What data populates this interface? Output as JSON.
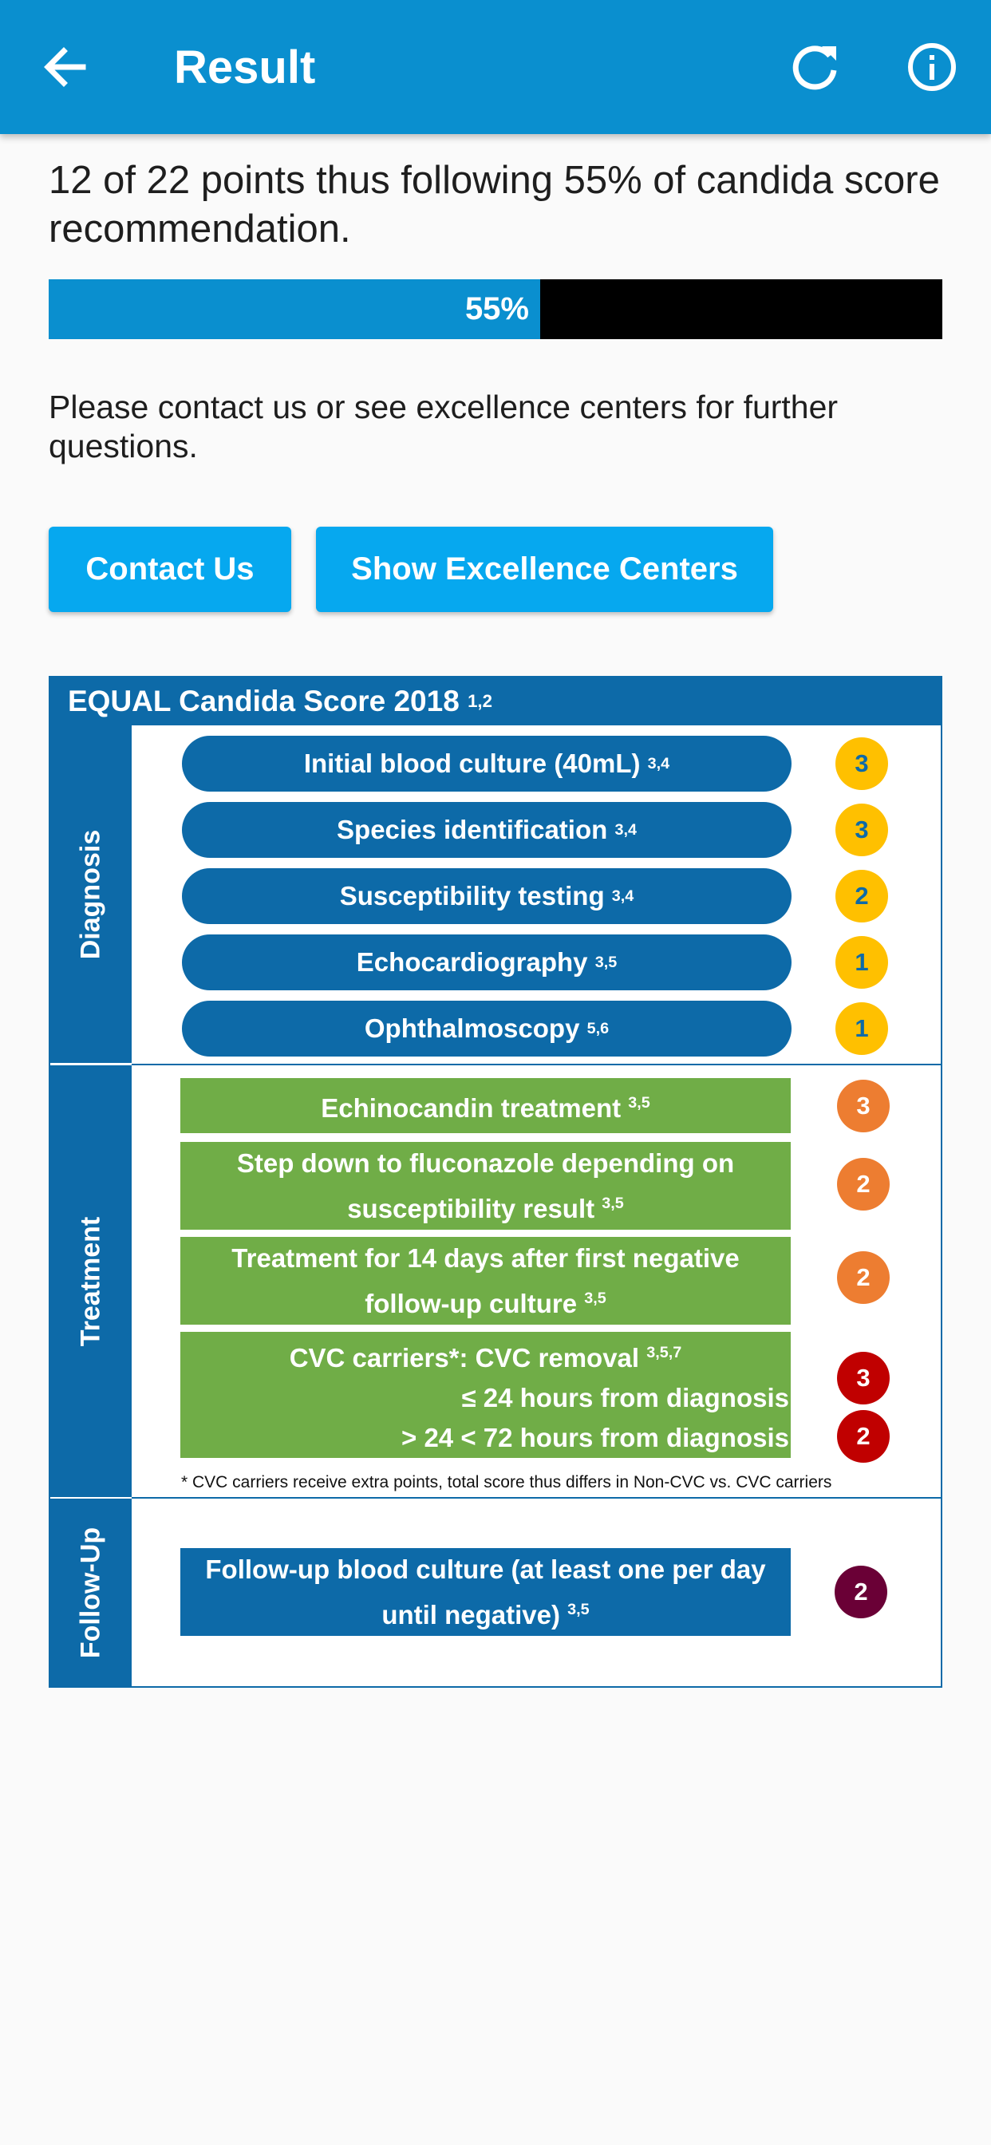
{
  "header": {
    "title": "Result",
    "back_icon": "arrow-left-icon",
    "refresh_icon": "refresh-icon",
    "info_icon": "info-icon",
    "color": "#0a8fcf"
  },
  "result": {
    "summary": "12 of 22 points thus following 55% of candida score recommendation.",
    "progress_percent": 55,
    "progress_label": "55%",
    "contact_text": "Please contact us or see excellence centers for further questions."
  },
  "buttons": {
    "contact": "Contact Us",
    "centers": "Show Excellence Centers"
  },
  "score_card": {
    "title": "EQUAL Candida Score 2018",
    "title_refs": "1,2",
    "diagnosis": {
      "label": "Diagnosis",
      "items": [
        {
          "text": "Initial blood culture (40mL)",
          "refs": "3,4",
          "points": "3"
        },
        {
          "text": "Species identification",
          "refs": "3,4",
          "points": "3"
        },
        {
          "text": "Susceptibility testing",
          "refs": "3,4",
          "points": "2"
        },
        {
          "text": "Echocardiography",
          "refs": "3,5",
          "points": "1"
        },
        {
          "text": "Ophthalmoscopy",
          "refs": "5,6",
          "points": "1"
        }
      ]
    },
    "treatment": {
      "label": "Treatment",
      "items": [
        {
          "line1": "Echinocandin treatment",
          "refs": "3,5",
          "points": "3"
        },
        {
          "line1": "Step down to fluconazole depending on",
          "line2": "susceptibility result",
          "refs": "3,5",
          "points": "2"
        },
        {
          "line1": "Treatment for 14 days after first negative",
          "line2": "follow-up culture",
          "refs": "3,5",
          "points": "2"
        }
      ],
      "cvc": {
        "line1": "CVC carriers*: CVC removal",
        "refs": "3,5,7",
        "line2": "≤ 24 hours from diagnosis",
        "points2": "3",
        "line3": "> 24 < 72 hours from diagnosis",
        "points3": "2"
      },
      "footnote": "* CVC carriers receive extra points, total score thus differs in Non-CVC vs. CVC carriers"
    },
    "followup": {
      "label": "Follow-Up",
      "line1": "Follow-up blood culture (at least one per day",
      "line2": "until negative)",
      "refs": "3,5",
      "points": "2"
    }
  }
}
